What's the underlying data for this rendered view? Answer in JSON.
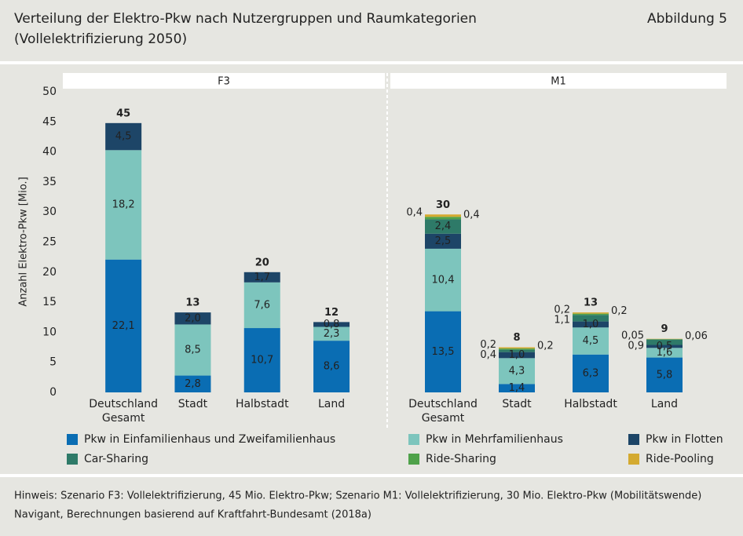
{
  "chart_data": {
    "type": "bar",
    "stacked": true,
    "title": "Verteilung der Elektro-Pkw nach Nutzergruppen und Raumkategorien",
    "subtitle": "(Vollelektrifizierung 2050)",
    "figure_label": "Abbildung 5",
    "ylabel": "Anzahl Elektro-Pkw [Mio.]",
    "ylim": [
      0,
      50
    ],
    "yticks": [
      0,
      5,
      10,
      15,
      20,
      25,
      30,
      35,
      40,
      45,
      50
    ],
    "series": [
      {
        "name": "Pkw in Einfamilienhaus und Zweifamilienhaus",
        "color": "#0a6db3"
      },
      {
        "name": "Pkw in Mehrfamilienhaus",
        "color": "#7dc5bd"
      },
      {
        "name": "Pkw in Flotten",
        "color": "#1d4567"
      },
      {
        "name": "Car-Sharing",
        "color": "#2e7a68"
      },
      {
        "name": "Ride-Sharing",
        "color": "#4fa24a"
      },
      {
        "name": "Ride-Pooling",
        "color": "#d4aa30"
      }
    ],
    "panels": [
      {
        "title": "F3",
        "categories": [
          "Deutschland Gesamt",
          "Stadt",
          "Halbstadt",
          "Land"
        ],
        "totals": [
          45,
          13,
          20,
          12
        ],
        "series": [
          {
            "values": [
              22.1,
              2.8,
              10.7,
              8.6
            ],
            "value_labels": [
              "22,1",
              "2,8",
              "10,7",
              "8,6"
            ]
          },
          {
            "values": [
              18.2,
              8.5,
              7.6,
              2.3
            ],
            "value_labels": [
              "18,2",
              "8,5",
              "7,6",
              "2,3"
            ]
          },
          {
            "values": [
              4.5,
              2.0,
              1.7,
              0.8
            ],
            "value_labels": [
              "4,5",
              "2,0",
              "1,7",
              "0,8"
            ]
          },
          {
            "values": [
              null,
              null,
              null,
              null
            ],
            "value_labels": [
              null,
              null,
              null,
              null
            ]
          },
          {
            "values": [
              null,
              null,
              null,
              null
            ],
            "value_labels": [
              null,
              null,
              null,
              null
            ]
          },
          {
            "values": [
              null,
              null,
              null,
              null
            ],
            "value_labels": [
              null,
              null,
              null,
              null
            ]
          }
        ]
      },
      {
        "title": "M1",
        "categories": [
          "Deutschland Gesamt",
          "Stadt",
          "Halbstadt",
          "Land"
        ],
        "totals": [
          30,
          8,
          13,
          9
        ],
        "series": [
          {
            "values": [
              13.5,
              1.4,
              6.3,
              5.8
            ],
            "value_labels": [
              "13,5",
              "1,4",
              "6,3",
              "5,8"
            ]
          },
          {
            "values": [
              10.4,
              4.3,
              4.5,
              1.6
            ],
            "value_labels": [
              "10,4",
              "4,3",
              "4,5",
              "1,6"
            ]
          },
          {
            "values": [
              2.5,
              1.0,
              1.0,
              0.5
            ],
            "value_labels": [
              "2,5",
              "1,0",
              "1,0",
              "0,5"
            ]
          },
          {
            "values": [
              2.4,
              0.4,
              1.1,
              0.9
            ],
            "value_labels": [
              "2,4",
              "0,4",
              "1,1",
              "0,9"
            ]
          },
          {
            "values": [
              0.4,
              0.2,
              0.2,
              0.06
            ],
            "value_labels": [
              "0,4",
              "0,2",
              "0,2",
              "0,06"
            ]
          },
          {
            "values": [
              0.4,
              0.2,
              0.2,
              0.05
            ],
            "value_labels": [
              "0,4",
              "0,2",
              "0,2",
              "0,05"
            ]
          }
        ]
      }
    ],
    "note": "Hinweis: Szenario F3: Vollelektrifizierung, 45 Mio. Elektro-Pkw; Szenario M1: Vollelektrifizierung, 30 Mio. Elektro-Pkw (Mobilitätswende)",
    "source": "Navigant, Berechnungen basierend auf Kraftfahrt-Bundesamt (2018a)"
  }
}
